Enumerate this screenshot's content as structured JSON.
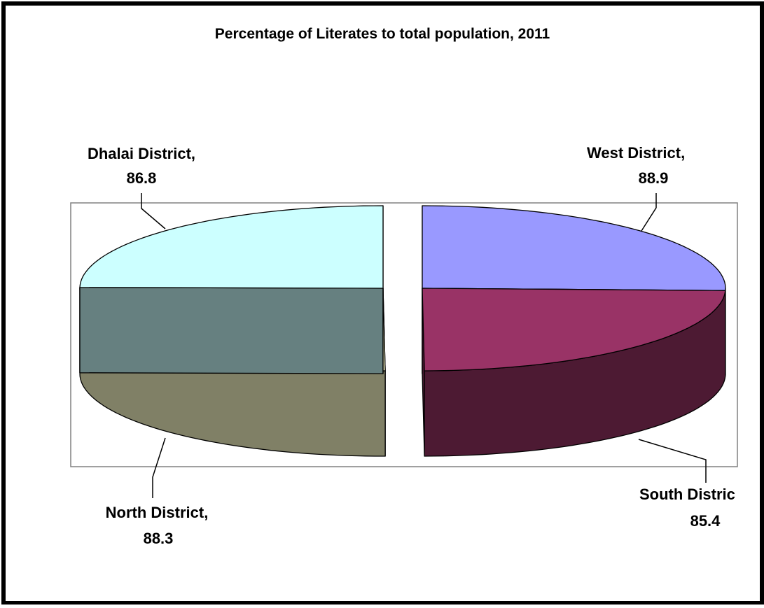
{
  "chart_data": {
    "type": "pie",
    "style": "3d-exploded",
    "title": "Percentage of Literates to total population, 2011",
    "categories": [
      "West District",
      "South District",
      "North District",
      "Dhalai District"
    ],
    "values": [
      88.9,
      85.4,
      88.3,
      86.8
    ],
    "data_labels": [
      {
        "name": "West District,",
        "value": "88.9"
      },
      {
        "name": "South Distric",
        "value": "85.4"
      },
      {
        "name": "North District,",
        "value": "88.3"
      },
      {
        "name": "Dhalai District,",
        "value": "86.8"
      }
    ],
    "colors": {
      "West District": "#9999ff",
      "South District": "#993366",
      "North District": "#ffffcc",
      "Dhalai District": "#ccffff"
    },
    "side_colors": {
      "West District": "#4d4d80",
      "South District": "#4d1a33",
      "North District": "#808066",
      "Dhalai District": "#668080"
    },
    "legend": "none"
  }
}
